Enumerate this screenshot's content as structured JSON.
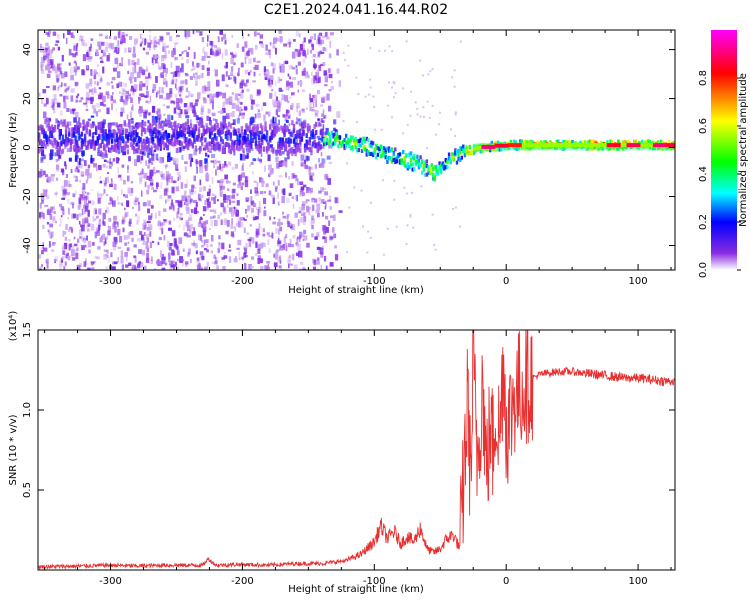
{
  "title": "C2E1.2024.041.16.44.R02",
  "colors": {
    "snr_line": "#e83030",
    "axis": "#000000",
    "cmap": [
      "#ffffff",
      "#8a2be2",
      "#0000ff",
      "#00ffff",
      "#00ff00",
      "#ffff00",
      "#ff0000",
      "#ff00ff"
    ]
  },
  "chart_data": [
    {
      "type": "heatmap",
      "name": "spectrogram",
      "xlabel": "Height of straight line (km)",
      "ylabel": "Frequency (Hz)",
      "xlim": [
        -355,
        128
      ],
      "ylim": [
        -50,
        48
      ],
      "xticks": [
        -300,
        -200,
        -100,
        0,
        100
      ],
      "xtick_labels": [
        "-300",
        "-200",
        "-100",
        "0",
        "100"
      ],
      "yticks": [
        -40,
        -20,
        0,
        20,
        40
      ],
      "ytick_labels": [
        "-40",
        "-20",
        "0",
        "20",
        "40"
      ],
      "ridge": {
        "x": [
          -355,
          -300,
          -250,
          -200,
          -150,
          -130,
          -110,
          -90,
          -70,
          -55,
          -45,
          -35,
          -20,
          0,
          30,
          60,
          90,
          128
        ],
        "y": [
          5,
          4,
          5,
          4,
          4,
          3,
          1,
          -3,
          -6,
          -10,
          -6,
          -2,
          0,
          1,
          1,
          1,
          1,
          1
        ]
      },
      "colorbar": {
        "label": "Normalized spectral amplitude",
        "range": [
          0,
          1
        ],
        "ticks": [
          0.0,
          0.2,
          0.4,
          0.6,
          0.8
        ],
        "tick_labels": [
          "0.0",
          "0.2",
          "0.4",
          "0.6",
          "0.8"
        ]
      }
    },
    {
      "type": "line",
      "name": "snr",
      "xlabel": "Height of straight line (km)",
      "ylabel": "SNR (10 * v/v)",
      "yscale_label": "(x10⁴)",
      "xlim": [
        -355,
        128
      ],
      "ylim": [
        0,
        1.5
      ],
      "xticks": [
        -300,
        -200,
        -100,
        0,
        100
      ],
      "xtick_labels": [
        "-300",
        "-200",
        "-100",
        "0",
        "100"
      ],
      "yticks": [
        0.5,
        1.0,
        1.5
      ],
      "ytick_labels": [
        "0.5",
        "1.0",
        "1.5"
      ],
      "series": [
        {
          "name": "SNR",
          "x": [
            -355,
            -320,
            -300,
            -280,
            -260,
            -240,
            -230,
            -226,
            -220,
            -200,
            -180,
            -160,
            -140,
            -130,
            -120,
            -110,
            -100,
            -95,
            -90,
            -85,
            -80,
            -75,
            -70,
            -65,
            -60,
            -55,
            -50,
            -45,
            -40,
            -35,
            -32,
            -29,
            -27,
            -25,
            -22,
            -20,
            -18,
            -15,
            -12,
            -10,
            -8,
            -5,
            -2,
            0,
            3,
            6,
            10,
            15,
            20,
            25,
            30,
            40,
            50,
            60,
            70,
            80,
            90,
            100,
            110,
            120,
            128
          ],
          "y": [
            0.02,
            0.025,
            0.03,
            0.025,
            0.03,
            0.03,
            0.03,
            0.07,
            0.03,
            0.035,
            0.03,
            0.04,
            0.04,
            0.05,
            0.06,
            0.09,
            0.16,
            0.25,
            0.18,
            0.22,
            0.15,
            0.19,
            0.16,
            0.24,
            0.12,
            0.1,
            0.12,
            0.18,
            0.2,
            0.12,
            0.6,
            1.1,
            0.5,
            1.3,
            0.7,
            0.9,
            1.2,
            0.6,
            0.9,
            0.75,
            1.05,
            0.8,
            1.35,
            0.9,
            0.95,
            1.1,
            1.12,
            1.18,
            1.2,
            1.22,
            1.23,
            1.24,
            1.24,
            1.23,
            1.22,
            1.21,
            1.2,
            1.2,
            1.19,
            1.18,
            1.18
          ]
        }
      ]
    }
  ]
}
